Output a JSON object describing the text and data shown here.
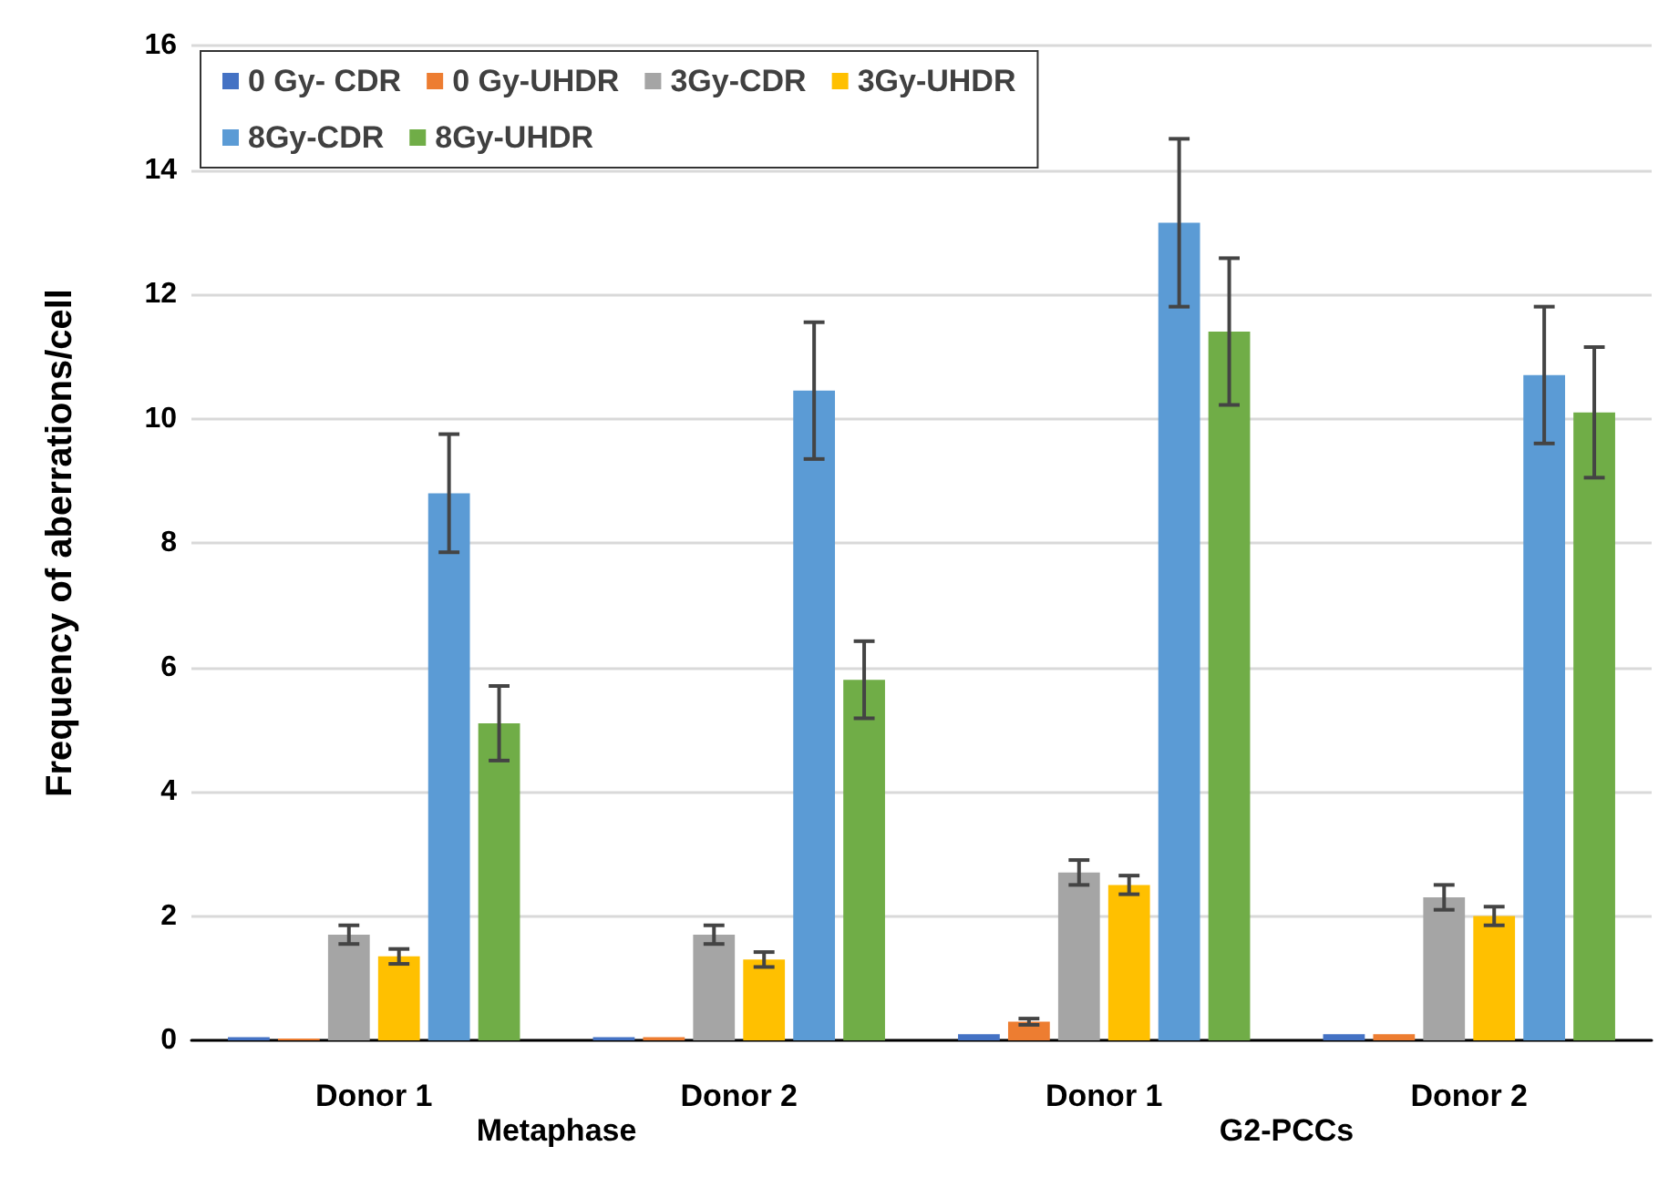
{
  "chart_data": {
    "type": "bar",
    "ylabel": "Frequency of aberrations/cell",
    "categories": [
      "Donor 1",
      "Donor 2",
      "Donor 1",
      "Donor 2"
    ],
    "series": [
      {
        "name": "0 Gy- CDR",
        "color": "#4472c4",
        "values": [
          0.05,
          0.05,
          0.1,
          0.1
        ],
        "errors": [
          null,
          null,
          null,
          null
        ]
      },
      {
        "name": "0 Gy-UHDR",
        "color": "#ed7d31",
        "values": [
          0.03,
          0.05,
          0.3,
          0.1
        ],
        "errors": [
          null,
          null,
          0.05,
          null
        ]
      },
      {
        "name": "3Gy-CDR",
        "color": "#a5a5a5",
        "values": [
          1.7,
          1.7,
          2.7,
          2.3
        ],
        "errors": [
          0.15,
          0.15,
          0.2,
          0.2
        ]
      },
      {
        "name": "3Gy-UHDR",
        "color": "#ffc000",
        "values": [
          1.35,
          1.3,
          2.5,
          2.0
        ],
        "errors": [
          0.12,
          0.12,
          0.15,
          0.15
        ]
      },
      {
        "name": "8Gy-CDR",
        "color": "#5b9bd5",
        "values": [
          8.8,
          10.45,
          13.15,
          10.7
        ],
        "errors": [
          0.95,
          1.1,
          1.35,
          1.1
        ]
      },
      {
        "name": "8Gy-UHDR",
        "color": "#70ad47",
        "values": [
          5.1,
          5.8,
          11.4,
          10.1
        ],
        "errors": [
          0.6,
          0.62,
          1.18,
          1.05
        ]
      }
    ],
    "annotations": [
      "Metaphase",
      "G2-PCCs"
    ],
    "ylim": [
      0,
      16
    ],
    "yticks": [
      0,
      2,
      4,
      6,
      8,
      10,
      12,
      14,
      16
    ],
    "grid": "y",
    "legend": "top left"
  }
}
